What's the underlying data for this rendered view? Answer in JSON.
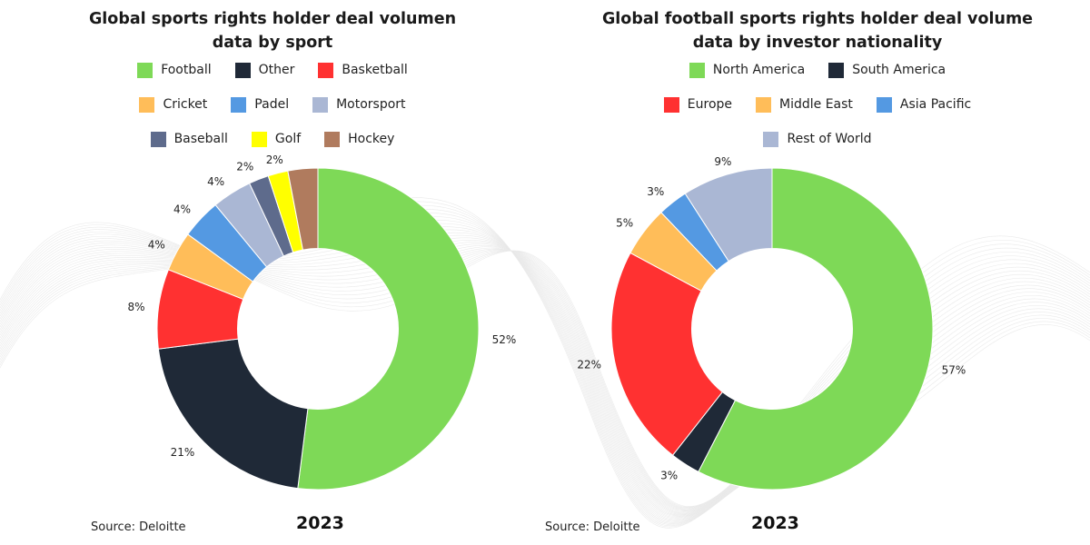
{
  "chart_data": [
    {
      "type": "pie",
      "title_lines": [
        "Global sports rights holder deal volumen",
        "data by sport"
      ],
      "categories": [
        "Football",
        "Other",
        "Basketball",
        "Cricket",
        "Padel",
        "Motorsport",
        "Baseball",
        "Golf",
        "Hockey"
      ],
      "values": [
        52,
        21,
        8,
        4,
        4,
        4,
        2,
        2,
        3
      ],
      "labels": [
        "52%",
        "21%",
        "8%",
        "4%",
        "4%",
        "4%",
        "2%",
        "2%",
        ""
      ],
      "colors": [
        "#7ed957",
        "#1f2937",
        "#ff3131",
        "#ffbd59",
        "#5499e2",
        "#aab7d4",
        "#5e6b8c",
        "#ffff00",
        "#b07b5e"
      ],
      "legend_rows": [
        [
          "Football",
          "Other",
          "Basketball"
        ],
        [
          "Cricket",
          "Padel",
          "Motorsport"
        ],
        [
          "Baseball",
          "Golf",
          "Hockey"
        ]
      ],
      "legend_position": "top",
      "inner_radius_ratio": 0.5,
      "source": "Source: Deloitte",
      "year": "2023"
    },
    {
      "type": "pie",
      "title_lines": [
        "Global football sports rights holder deal volume",
        "data by investor nationality"
      ],
      "categories": [
        "North America",
        "South America",
        "Europe",
        "Middle East",
        "Asia Pacific",
        "Rest of World"
      ],
      "values": [
        57,
        3,
        22,
        5,
        3,
        9
      ],
      "labels": [
        "57%",
        "3%",
        "22%",
        "5%",
        "3%",
        "9%"
      ],
      "colors": [
        "#7ed957",
        "#1f2937",
        "#ff3131",
        "#ffbd59",
        "#5499e2",
        "#aab7d4"
      ],
      "legend_rows": [
        [
          "North America",
          "South America"
        ],
        [
          "Europe",
          "Middle East",
          "Asia Pacific"
        ],
        [
          "Rest of World"
        ]
      ],
      "legend_position": "top",
      "inner_radius_ratio": 0.5,
      "source": "Source: Deloitte",
      "year": "2023"
    }
  ]
}
